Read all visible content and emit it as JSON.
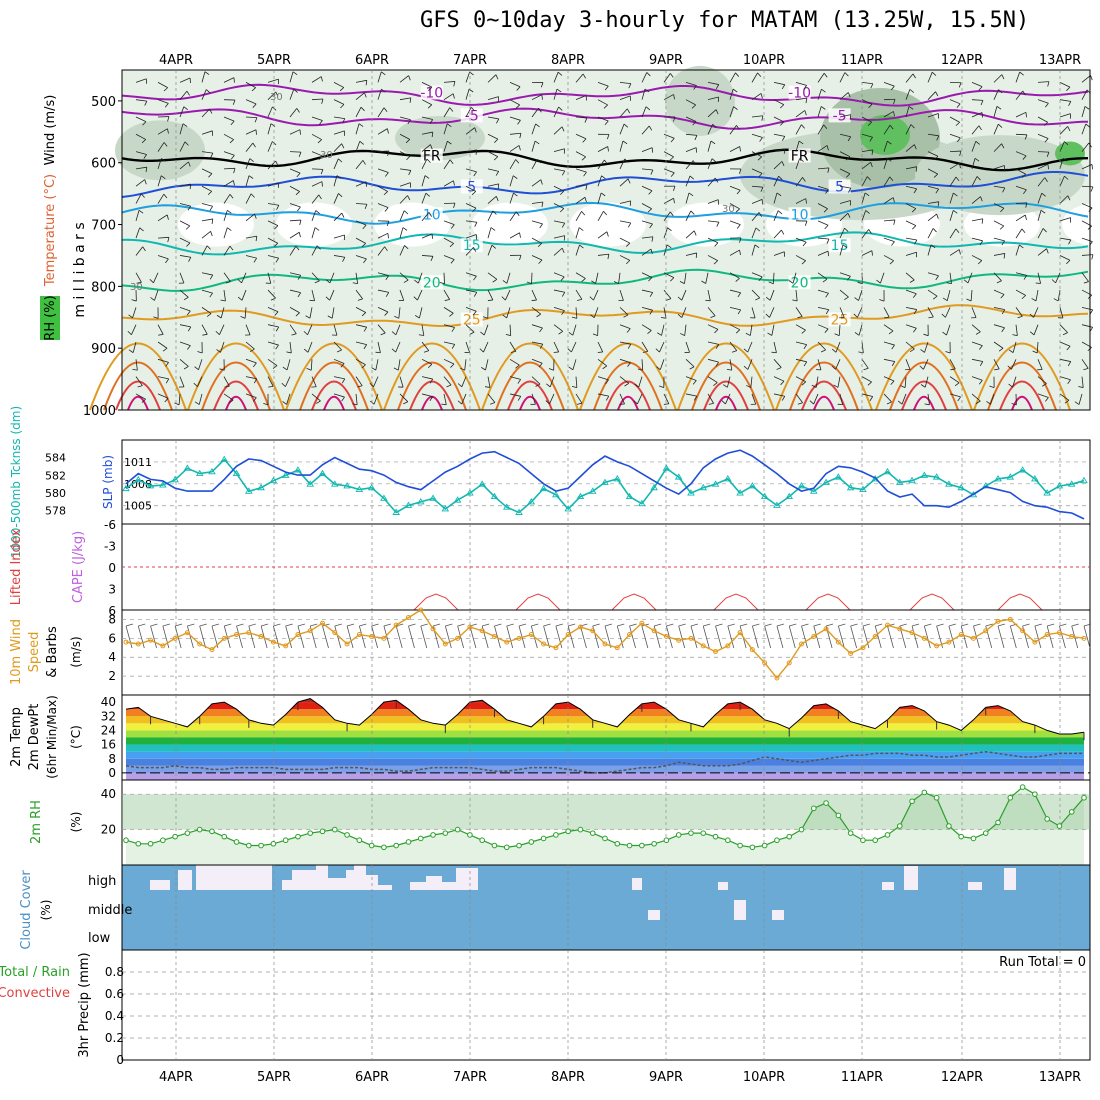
{
  "title": "GFS 0~10day 3-hourly for MATAM (13.25W, 15.5N)",
  "days": [
    "4APR",
    "5APR",
    "6APR",
    "7APR",
    "8APR",
    "9APR",
    "10APR",
    "11APR",
    "12APR",
    "13APR"
  ],
  "colors": {
    "purple": "#9a1ab0",
    "blue": "#1e4fd6",
    "lightblue": "#1e9fe0",
    "teal": "#10b8b0",
    "green": "#10b880",
    "orange": "#e09a20",
    "red": "#e04040",
    "rhgreen": "#2aa02a"
  },
  "chart_data": [
    {
      "type": "contour",
      "panel": "upper-air",
      "ylabel_parts": [
        "RH (%)",
        "Temperature (°C)",
        "Wind (m/s)"
      ],
      "yaxis_label": "millibars",
      "yticks": [
        500,
        600,
        700,
        800,
        900,
        1000
      ],
      "ylim": [
        450,
        1000
      ],
      "isotherms": [
        {
          "label": "-10",
          "p": 488
        },
        {
          "label": "-5",
          "p": 525
        },
        {
          "label": "FR",
          "p": 590
        },
        {
          "label": "5",
          "p": 640
        },
        {
          "label": "10",
          "p": 685
        },
        {
          "label": "15",
          "p": 735
        },
        {
          "label": "20",
          "p": 795
        },
        {
          "label": "25",
          "p": 855
        }
      ],
      "rh_labels": [
        "30"
      ]
    },
    {
      "type": "line",
      "panel": "thickness-slp",
      "ylabel_left": "1000-500mb Tcknss (dm)",
      "ylabel_right": "SLP (mb)",
      "yticks_left": [
        578,
        580,
        582,
        584
      ],
      "yticks_right": [
        1005,
        1008,
        1011
      ],
      "series": [
        {
          "name": "1000-500mb Tcknss",
          "unit": "dm",
          "values": [
            580.5,
            581.5,
            580.8,
            580.9,
            581.5,
            582.8,
            582.2,
            582.4,
            583.8,
            582.2,
            580.2,
            580.6,
            581.4,
            582.0,
            582.6,
            581.0,
            582.2,
            581.0,
            580.8,
            580.4,
            580.6,
            579.4,
            577.8,
            578.6,
            579.0,
            579.4,
            578.2,
            579.2,
            580.0,
            581.0,
            579.6,
            578.4,
            577.8,
            579.0,
            580.5,
            579.8,
            578.2,
            579.6,
            580.2,
            581.2,
            581.6,
            579.6,
            578.8,
            580.6,
            582.8,
            581.8,
            580.0,
            580.6,
            581.0,
            581.6,
            580.0,
            580.8,
            579.6,
            578.6,
            579.6,
            580.8,
            580.2,
            581.2,
            581.8,
            580.6,
            580.4,
            581.6,
            582.4,
            581.2,
            581.4,
            582.0,
            581.8,
            581.0,
            580.6,
            579.8,
            580.8,
            581.6,
            581.8,
            582.6,
            581.6,
            580.0,
            580.8,
            581.0,
            581.4
          ]
        },
        {
          "name": "SLP",
          "unit": "mb",
          "values": [
            1008.0,
            1009.4,
            1008.6,
            1008.4,
            1007.4,
            1007.0,
            1007.0,
            1007.0,
            1008.6,
            1010.4,
            1011.4,
            1011.2,
            1010.4,
            1009.6,
            1009.2,
            1009.2,
            1010.6,
            1011.6,
            1010.8,
            1010.0,
            1009.8,
            1009.2,
            1008.2,
            1007.6,
            1007.2,
            1008.4,
            1009.6,
            1010.4,
            1011.4,
            1012.2,
            1012.4,
            1011.6,
            1010.8,
            1009.4,
            1008.0,
            1007.0,
            1007.4,
            1009.0,
            1010.6,
            1011.8,
            1011.0,
            1010.4,
            1009.4,
            1008.4,
            1007.4,
            1006.6,
            1008.0,
            1010.2,
            1011.4,
            1012.2,
            1012.6,
            1011.8,
            1010.6,
            1009.4,
            1008.0,
            1007.0,
            1007.4,
            1009.4,
            1010.4,
            1010.2,
            1009.6,
            1008.8,
            1007.0,
            1006.2,
            1006.6,
            1005.0,
            1005.0,
            1004.8,
            1005.6,
            1006.6,
            1007.6,
            1007.2,
            1006.8,
            1005.6,
            1005.0,
            1004.8,
            1004.2,
            1004.0,
            1003.2
          ]
        }
      ]
    },
    {
      "type": "line",
      "panel": "cape-li",
      "ylabel_parts": [
        "Lifted Index",
        "CAPE (J/kg)"
      ],
      "yticks": [
        "-6",
        "-3",
        "0",
        "3",
        "6"
      ],
      "ylim": [
        -6,
        6
      ]
    },
    {
      "type": "line",
      "panel": "wind10m",
      "ylabel_parts": [
        "10m Wind",
        "Speed",
        "& Barbs"
      ],
      "yunit": "(m/s)",
      "yticks": [
        2,
        4,
        6,
        8
      ],
      "ylim": [
        0,
        9
      ],
      "series": [
        {
          "name": "10m Wind Speed",
          "values": [
            5.6,
            5.4,
            5.8,
            5.2,
            6.0,
            6.6,
            5.4,
            4.8,
            6.0,
            6.4,
            6.6,
            6.2,
            5.6,
            5.2,
            6.4,
            6.8,
            7.6,
            6.6,
            5.4,
            6.4,
            6.2,
            6.0,
            7.4,
            8.2,
            9.0,
            7.0,
            5.4,
            6.0,
            7.2,
            6.8,
            6.2,
            5.6,
            6.0,
            6.4,
            5.4,
            5.0,
            6.4,
            7.2,
            6.8,
            5.4,
            5.0,
            6.4,
            7.6,
            6.8,
            6.2,
            5.8,
            6.0,
            5.2,
            4.6,
            5.2,
            6.6,
            4.8,
            3.4,
            1.8,
            3.4,
            5.4,
            6.2,
            7.0,
            5.6,
            4.4,
            5.0,
            6.2,
            7.4,
            7.0,
            6.6,
            6.0,
            5.2,
            5.6,
            6.4,
            6.0,
            6.8,
            7.8,
            8.0,
            6.8,
            5.6,
            6.4,
            6.6,
            6.2,
            6.0
          ]
        }
      ]
    },
    {
      "type": "area",
      "panel": "temp2m",
      "ylabel_parts": [
        "2m Temp",
        "2m DewPt",
        "(6hr Min/Max)"
      ],
      "yunit": "(°C)",
      "yticks": [
        0,
        8,
        16,
        24,
        32,
        40
      ],
      "ylim": [
        -4,
        44
      ],
      "series": [
        {
          "name": "2m Temp",
          "values": [
            36,
            37,
            32,
            30,
            28,
            26,
            32,
            39,
            40,
            36,
            30,
            28,
            27,
            33,
            40,
            42,
            37,
            30,
            28,
            27,
            33,
            40,
            41,
            36,
            30,
            28,
            27,
            33,
            40,
            41,
            36,
            30,
            28,
            26,
            32,
            39,
            40,
            36,
            30,
            28,
            26,
            33,
            39,
            40,
            36,
            30,
            28,
            26,
            33,
            39,
            40,
            36,
            30,
            28,
            25,
            31,
            38,
            39,
            35,
            29,
            27,
            25,
            30,
            37,
            38,
            35,
            29,
            27,
            24,
            30,
            37,
            38,
            35,
            29,
            27,
            24,
            22,
            22,
            23
          ]
        },
        {
          "name": "2m DewPt",
          "values": [
            4,
            3,
            3,
            3,
            4,
            3,
            3,
            2,
            2,
            3,
            3,
            3,
            3,
            2,
            2,
            2,
            2,
            3,
            3,
            3,
            2,
            2,
            1,
            1,
            2,
            3,
            3,
            3,
            3,
            2,
            1,
            1,
            2,
            3,
            3,
            3,
            2,
            1,
            0,
            0,
            1,
            2,
            3,
            3,
            4,
            6,
            5,
            4,
            4,
            4,
            5,
            7,
            9,
            8,
            7,
            6,
            7,
            8,
            9,
            10,
            10,
            11,
            11,
            11,
            10,
            10,
            9,
            9,
            10,
            11,
            12,
            11,
            10,
            9,
            9,
            10,
            11,
            11,
            11
          ]
        }
      ]
    },
    {
      "type": "area",
      "panel": "rh2m",
      "ylabel": "2m RH",
      "yunit": "(%)",
      "yticks": [
        20,
        40
      ],
      "ylim": [
        0,
        48
      ],
      "series": [
        {
          "name": "2m RH",
          "values": [
            14,
            12,
            12,
            14,
            16,
            18,
            20,
            19,
            16,
            13,
            11,
            11,
            12,
            14,
            16,
            18,
            19,
            20,
            17,
            14,
            11,
            10,
            11,
            13,
            15,
            17,
            18,
            20,
            17,
            14,
            11,
            10,
            11,
            13,
            15,
            17,
            19,
            20,
            18,
            15,
            12,
            11,
            11,
            12,
            14,
            17,
            18,
            18,
            16,
            14,
            11,
            10,
            11,
            14,
            16,
            20,
            32,
            35,
            28,
            18,
            14,
            14,
            17,
            22,
            36,
            41,
            38,
            22,
            16,
            15,
            18,
            24,
            38,
            44,
            40,
            26,
            22,
            30,
            38
          ]
        }
      ]
    },
    {
      "type": "bar",
      "panel": "cloud",
      "ylabel": "Cloud Cover",
      "yunit": "(%)",
      "levels": [
        "high",
        "middle",
        "low"
      ]
    },
    {
      "type": "bar",
      "panel": "precip",
      "ylabel_parts": [
        "Total / Rain",
        "Convective",
        "3hr Precip (mm)"
      ],
      "yticks": [
        "0",
        "0.2",
        "0.4",
        "0.6",
        "0.8"
      ],
      "ylim": [
        0,
        1
      ],
      "run_total": "Run Total = 0"
    }
  ]
}
